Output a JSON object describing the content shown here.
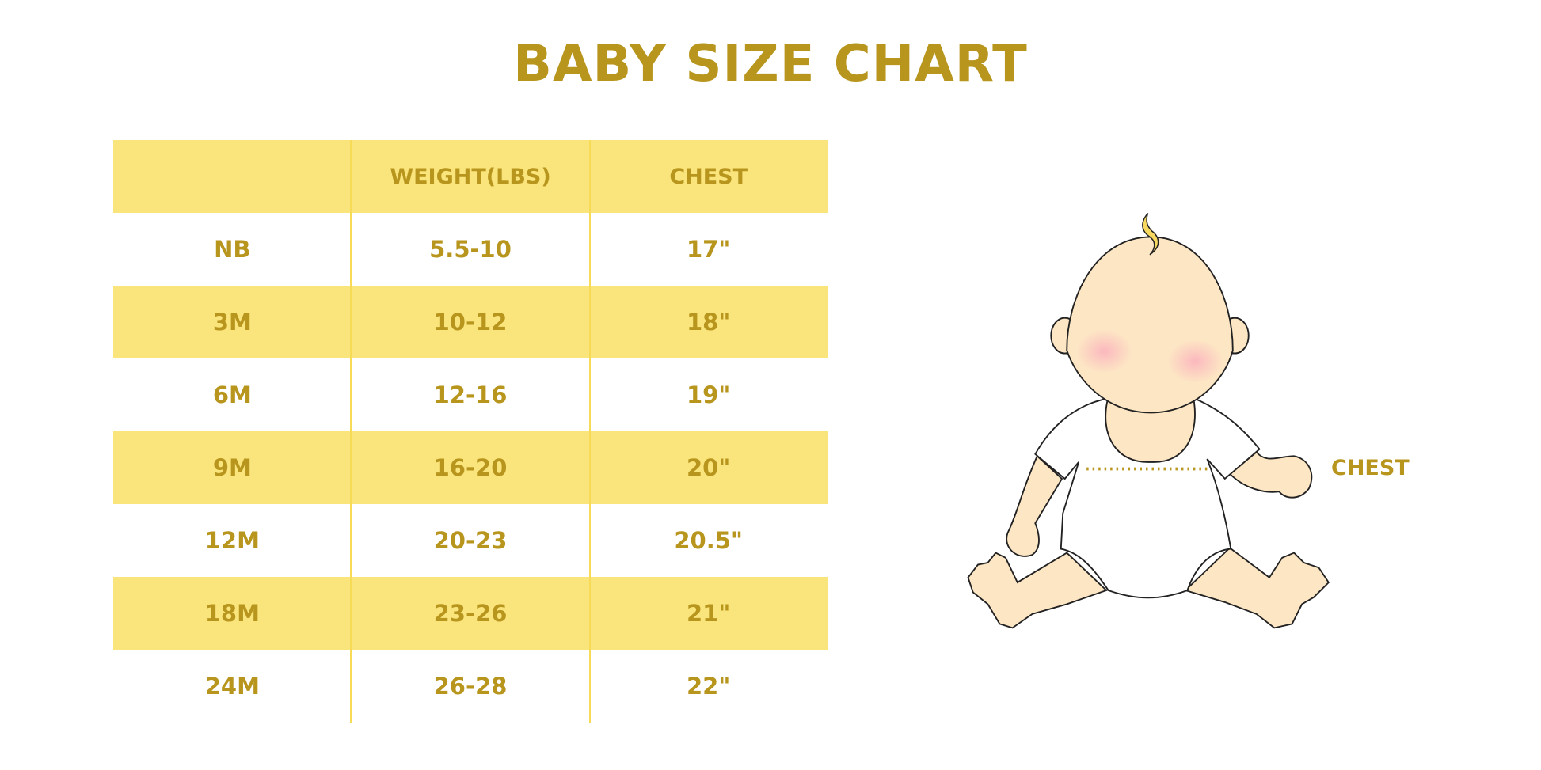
{
  "title": "BABY SIZE CHART",
  "table": {
    "headers": [
      "",
      "WEIGHT(LBS)",
      "CHEST"
    ],
    "rows": [
      [
        "NB",
        "5.5-10",
        "17\""
      ],
      [
        "3M",
        "10-12",
        "18\""
      ],
      [
        "6M",
        "12-16",
        "19\""
      ],
      [
        "9M",
        "16-20",
        "20\""
      ],
      [
        "12M",
        "20-23",
        "20.5\""
      ],
      [
        "18M",
        "23-26",
        "21\""
      ],
      [
        "24M",
        "26-28",
        "22\""
      ]
    ]
  },
  "illustration": {
    "chest_label": "CHEST"
  },
  "colors": {
    "text": "#B8961E",
    "band": "#FAE47C",
    "divider": "#F7DA55",
    "skin": "#FDE6C4",
    "cheek": "#FBB8BE"
  }
}
